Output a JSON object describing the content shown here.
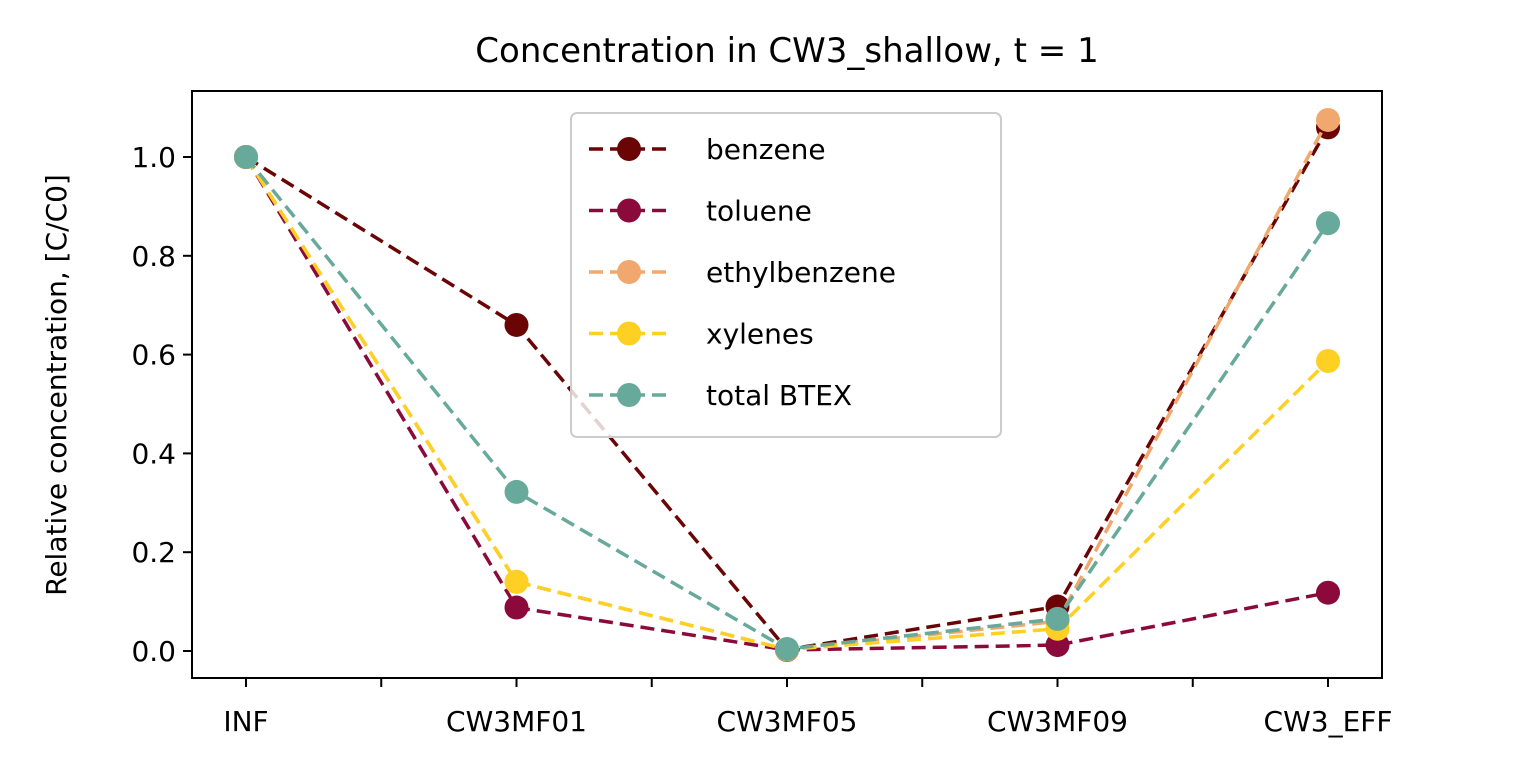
{
  "chart_data": {
    "type": "line",
    "title": "Concentration in CW3_shallow, t = 1",
    "xlabel": "",
    "ylabel": "Relative concentration, [C/C0]",
    "categories": [
      "INF",
      "CW3MF01",
      "CW3MF05",
      "CW3MF09",
      "CW3_EFF"
    ],
    "ylim": [
      -0.055,
      1.13
    ],
    "yticks": [
      "0.0",
      "0.2",
      "0.4",
      "0.6",
      "0.8",
      "1.0"
    ],
    "grid": false,
    "legend_position": "upper center",
    "series": [
      {
        "name": "benzene",
        "color": "#6b0505",
        "values": [
          1.0,
          0.66,
          0.003,
          0.09,
          1.06
        ]
      },
      {
        "name": "toluene",
        "color": "#8b0a3b",
        "values": [
          1.0,
          0.088,
          0.002,
          0.012,
          0.118
        ]
      },
      {
        "name": "ethylbenzene",
        "color": "#f0a86e",
        "values": [
          1.0,
          0.14,
          0.003,
          0.06,
          1.075
        ]
      },
      {
        "name": "xylenes",
        "color": "#fdd023",
        "values": [
          1.0,
          0.14,
          0.003,
          0.045,
          0.587
        ]
      },
      {
        "name": "total BTEX",
        "color": "#67a99a",
        "values": [
          1.0,
          0.322,
          0.004,
          0.065,
          0.866
        ]
      }
    ]
  }
}
